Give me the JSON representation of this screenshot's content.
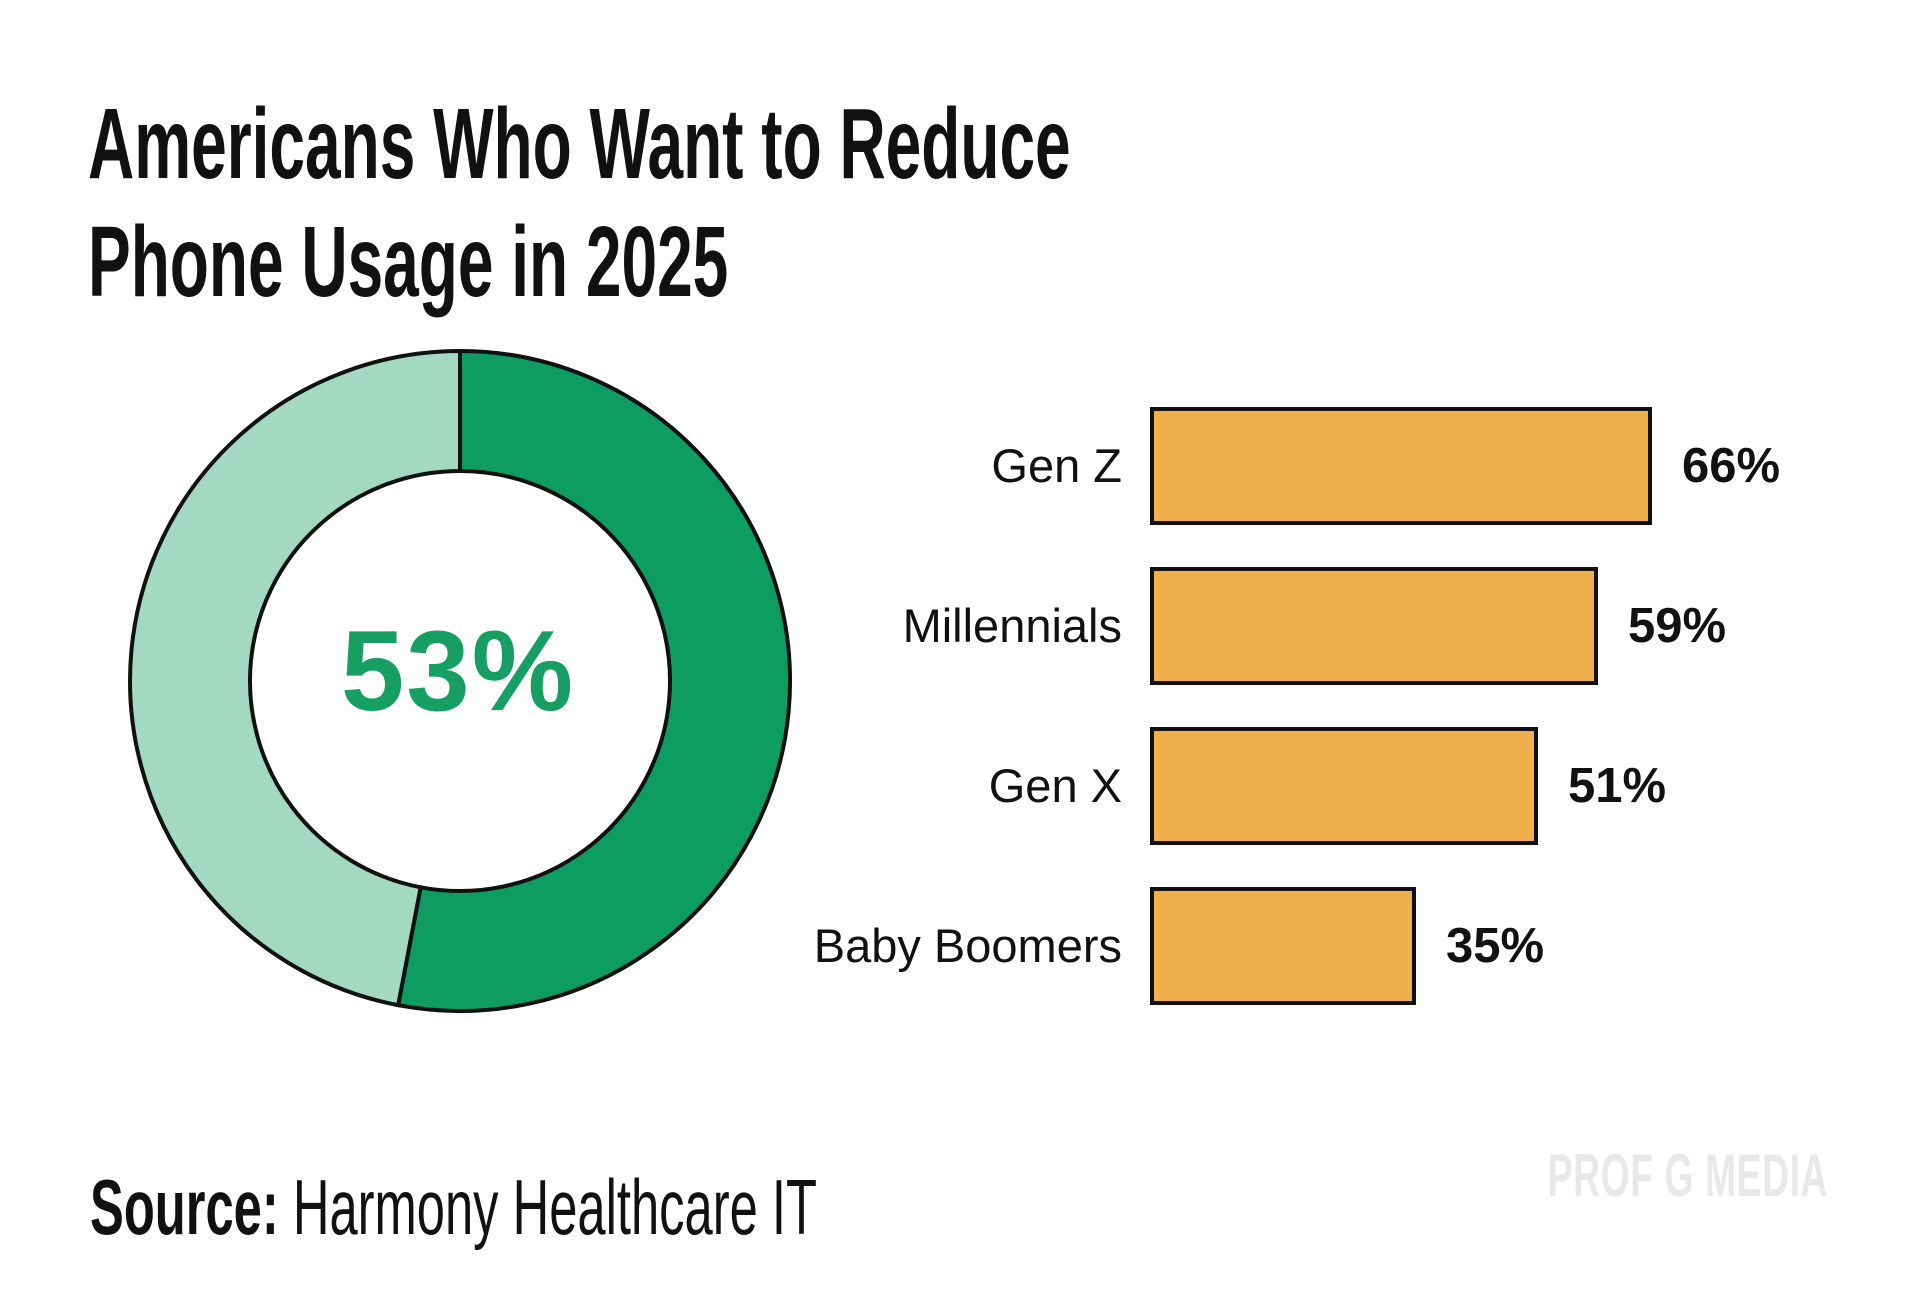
{
  "title": {
    "line1": "Americans Who Want to Reduce",
    "line2": "Phone Usage in 2025"
  },
  "source": {
    "prefix": "Source:",
    "text": " Harmony Healthcare IT"
  },
  "watermark": "PROF G MEDIA",
  "colors": {
    "donut_dark_green": "#0d9d62",
    "donut_light_green": "#a3d9c3",
    "donut_outline": "#111111",
    "center_label_green": "#179e63",
    "bar_orange": "#f0b14d",
    "bar_outline": "#111111",
    "watermark_gray": "#e8e8e8",
    "text_black": "#111111"
  },
  "chart_data": [
    {
      "type": "pie",
      "subtype": "donut",
      "values": [
        53,
        47
      ],
      "segment_colors": [
        "#0d9d62",
        "#a3d9c3"
      ],
      "center_label": "53%",
      "highlighted_value_pct": 53,
      "start_angle_deg": 0,
      "direction": "clockwise"
    },
    {
      "type": "bar",
      "orientation": "horizontal",
      "categories": [
        "Gen Z",
        "Millennials",
        "Gen X",
        "Baby Boomers"
      ],
      "values": [
        66,
        59,
        51,
        35
      ],
      "value_labels": [
        "66%",
        "59%",
        "51%",
        "35%"
      ],
      "xlim": [
        0,
        100
      ],
      "grid": false,
      "legend": false
    }
  ]
}
